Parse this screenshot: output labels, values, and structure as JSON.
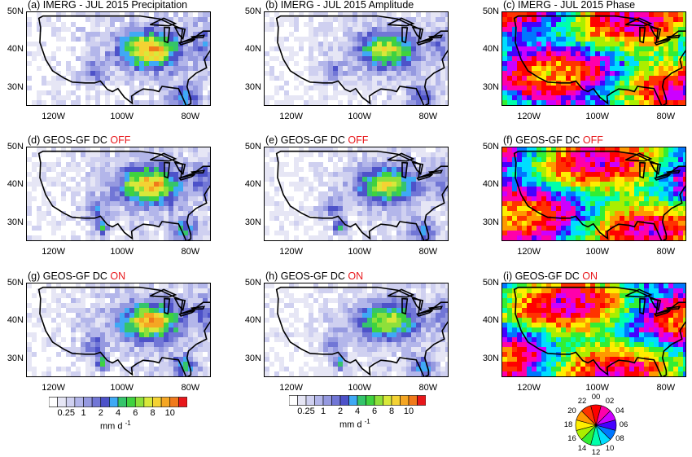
{
  "figure": {
    "panels": [
      {
        "id": "a",
        "title_main": "(a) IMERG - JUL 2015 Precipitation",
        "title_dc": "",
        "field": "precip",
        "variant": 0
      },
      {
        "id": "b",
        "title_main": "(b) IMERG - JUL 2015 Amplitude",
        "title_dc": "",
        "field": "amp",
        "variant": 0
      },
      {
        "id": "c",
        "title_main": "(c) IMERG - JUL 2015 Phase",
        "title_dc": "",
        "field": "phase",
        "variant": 0
      },
      {
        "id": "d",
        "title_main": "(d) GEOS-GF  DC ",
        "title_dc": "OFF",
        "field": "precip",
        "variant": 1
      },
      {
        "id": "e",
        "title_main": "(e) GEOS-GF  DC ",
        "title_dc": "OFF",
        "field": "amp",
        "variant": 1
      },
      {
        "id": "f",
        "title_main": "(f) GEOS-GF  DC ",
        "title_dc": "OFF",
        "field": "phase",
        "variant": 1
      },
      {
        "id": "g",
        "title_main": "(g) GEOS-GF  DC ",
        "title_dc": "ON",
        "field": "precip",
        "variant": 2
      },
      {
        "id": "h",
        "title_main": "(h) GEOS-GF  DC ",
        "title_dc": "ON",
        "field": "amp",
        "variant": 2
      },
      {
        "id": "i",
        "title_main": "(i) GEOS-GF  DC ",
        "title_dc": "ON",
        "field": "phase",
        "variant": 2
      }
    ],
    "lat_ticks": [
      "50N",
      "40N",
      "30N"
    ],
    "lon_ticks": [
      "120W",
      "100W",
      "80W"
    ],
    "dc_color": "#e8171b"
  },
  "chart_data": {
    "type": "heatmap",
    "description_grid": "3x3 panels of July 2015 diurnal cycle maps over CONUS",
    "xlim": [
      -128,
      -74
    ],
    "ylim": [
      25,
      50
    ],
    "precip_colorbar": {
      "tick_labels": [
        "0.25",
        "1",
        "2",
        "4",
        "6",
        "8",
        "10"
      ],
      "unit": "mm d",
      "unit_exp": "-1",
      "colors": [
        "#ffffff",
        "#e6e6f5",
        "#cfd0f0",
        "#b3b6ea",
        "#9599e0",
        "#7176d6",
        "#4d52c9",
        "#3fa9f5",
        "#35c46b",
        "#3fd23f",
        "#8ee03a",
        "#d8e83a",
        "#f4d233",
        "#f5a623",
        "#f07a1b",
        "#e8171b"
      ]
    },
    "amp_colorbar": {
      "tick_labels": [
        "0.25",
        "1",
        "2",
        "4",
        "6",
        "8",
        "10"
      ],
      "unit": "mm d",
      "unit_exp": "-1",
      "colors": [
        "#ffffff",
        "#e6e6f5",
        "#cfd0f0",
        "#b3b6ea",
        "#9599e0",
        "#7176d6",
        "#4d52c9",
        "#3fa9f5",
        "#35c46b",
        "#3fd23f",
        "#8ee03a",
        "#d8e83a",
        "#f4d233",
        "#f5a623",
        "#f07a1b",
        "#e8171b"
      ]
    },
    "phase_wheel": {
      "hours": [
        "00",
        "02",
        "04",
        "06",
        "08",
        "10",
        "12",
        "14",
        "16",
        "18",
        "20",
        "22"
      ],
      "colors": [
        "#ff0000",
        "#ff00aa",
        "#cc00ff",
        "#4400ff",
        "#0077ff",
        "#00ddff",
        "#00ffaa",
        "#33ee33",
        "#aaee00",
        "#ffee00",
        "#ff9900",
        "#ff3300"
      ]
    }
  }
}
